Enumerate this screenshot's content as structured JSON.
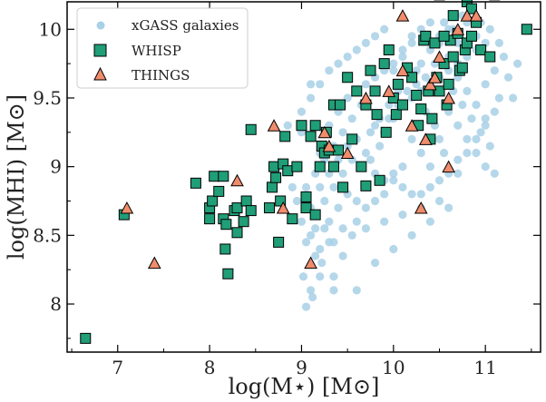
{
  "chart_data": {
    "type": "scatter",
    "xlabel": "log(M⋆) [M⊙]",
    "ylabel": "log(MHI) [M⊙]",
    "xlim": [
      6.45,
      11.6
    ],
    "ylim": [
      7.65,
      10.2
    ],
    "xticks": [
      7,
      8,
      9,
      10,
      11
    ],
    "yticks": [
      8,
      8.5,
      9,
      9.5,
      10
    ],
    "grid": false,
    "legend_position": "top-left",
    "series": [
      {
        "name": "xGASS galaxies",
        "marker": "circle",
        "color": "#a8d0e6",
        "points": [
          [
            9.05,
            7.98
          ],
          [
            9.12,
            8.05
          ],
          [
            9.22,
            8.3
          ],
          [
            9.3,
            8.45
          ],
          [
            9.15,
            8.55
          ],
          [
            9.35,
            8.2
          ],
          [
            9.45,
            8.35
          ],
          [
            9.55,
            8.5
          ],
          [
            9.6,
            8.1
          ],
          [
            9.7,
            8.55
          ],
          [
            9.8,
            8.3
          ],
          [
            9.9,
            8.6
          ],
          [
            10.0,
            8.4
          ],
          [
            10.1,
            8.65
          ],
          [
            10.2,
            8.5
          ],
          [
            10.3,
            8.8
          ],
          [
            10.4,
            8.6
          ],
          [
            10.5,
            8.9
          ],
          [
            10.6,
            8.7
          ],
          [
            10.7,
            8.95
          ],
          [
            9.1,
            8.7
          ],
          [
            9.2,
            8.85
          ],
          [
            9.3,
            8.95
          ],
          [
            9.4,
            9.05
          ],
          [
            9.5,
            9.15
          ],
          [
            9.6,
            9.2
          ],
          [
            9.7,
            9.1
          ],
          [
            9.8,
            9.3
          ],
          [
            9.9,
            9.25
          ],
          [
            10.0,
            9.35
          ],
          [
            10.1,
            9.45
          ],
          [
            10.2,
            9.5
          ],
          [
            10.3,
            9.55
          ],
          [
            10.4,
            9.6
          ],
          [
            10.5,
            9.65
          ],
          [
            10.6,
            9.7
          ],
          [
            10.7,
            9.75
          ],
          [
            10.8,
            9.8
          ],
          [
            10.9,
            9.85
          ],
          [
            11.0,
            9.9
          ],
          [
            9.0,
            9.4
          ],
          [
            9.1,
            9.5
          ],
          [
            9.2,
            9.6
          ],
          [
            9.3,
            9.7
          ],
          [
            9.4,
            9.75
          ],
          [
            9.5,
            9.8
          ],
          [
            9.6,
            9.85
          ],
          [
            9.7,
            9.9
          ],
          [
            9.8,
            9.95
          ],
          [
            9.9,
            10.0
          ],
          [
            10.0,
            9.7
          ],
          [
            10.1,
            9.8
          ],
          [
            10.2,
            9.9
          ],
          [
            10.3,
            9.75
          ],
          [
            10.4,
            9.85
          ],
          [
            10.5,
            9.95
          ],
          [
            10.6,
            10.0
          ],
          [
            10.7,
            9.9
          ],
          [
            10.8,
            10.05
          ],
          [
            10.9,
            9.95
          ],
          [
            11.0,
            9.6
          ],
          [
            11.1,
            9.7
          ],
          [
            11.2,
            9.8
          ],
          [
            11.3,
            9.5
          ],
          [
            11.1,
            9.4
          ],
          [
            11.0,
            9.3
          ],
          [
            10.9,
            9.2
          ],
          [
            10.8,
            9.1
          ],
          [
            10.7,
            9.3
          ],
          [
            10.6,
            9.4
          ],
          [
            10.5,
            9.2
          ],
          [
            10.4,
            9.0
          ],
          [
            10.3,
            9.1
          ],
          [
            10.2,
            9.2
          ],
          [
            10.1,
            9.0
          ],
          [
            10.0,
            8.9
          ],
          [
            9.9,
            8.8
          ],
          [
            9.8,
            8.95
          ],
          [
            9.7,
            8.85
          ],
          [
            9.6,
            8.75
          ],
          [
            9.5,
            8.8
          ],
          [
            9.4,
            8.7
          ],
          [
            9.3,
            8.6
          ],
          [
            9.2,
            8.4
          ],
          [
            9.1,
            8.5
          ],
          [
            9.0,
            8.6
          ],
          [
            8.95,
            8.75
          ],
          [
            8.9,
            8.85
          ],
          [
            8.85,
            9.3
          ],
          [
            9.0,
            9.25
          ],
          [
            9.1,
            9.6
          ],
          [
            9.2,
            9.1
          ],
          [
            9.3,
            9.3
          ],
          [
            9.4,
            9.4
          ],
          [
            9.5,
            9.5
          ],
          [
            9.6,
            9.55
          ],
          [
            9.7,
            9.6
          ],
          [
            9.8,
            9.65
          ],
          [
            9.9,
            9.7
          ],
          [
            10.0,
            9.75
          ],
          [
            10.1,
            9.85
          ],
          [
            10.2,
            9.95
          ],
          [
            10.3,
            10.0
          ],
          [
            10.4,
            10.05
          ],
          [
            10.5,
            9.9
          ],
          [
            10.6,
            9.8
          ],
          [
            10.7,
            9.65
          ],
          [
            10.8,
            9.55
          ],
          [
            10.9,
            9.45
          ],
          [
            11.0,
            9.35
          ],
          [
            10.55,
            9.1
          ],
          [
            10.45,
            9.3
          ],
          [
            10.35,
            9.4
          ],
          [
            10.25,
            9.6
          ],
          [
            10.15,
            9.7
          ],
          [
            10.05,
            9.55
          ],
          [
            9.95,
            9.45
          ],
          [
            9.85,
            9.35
          ],
          [
            9.75,
            9.25
          ],
          [
            9.65,
            9.0
          ],
          [
            9.55,
            9.05
          ],
          [
            9.45,
            8.95
          ],
          [
            9.35,
            8.85
          ],
          [
            9.25,
            8.75
          ],
          [
            9.15,
            8.65
          ],
          [
            9.05,
            8.45
          ],
          [
            9.02,
            8.2
          ],
          [
            9.1,
            8.1
          ],
          [
            9.2,
            8.2
          ],
          [
            9.35,
            8.1
          ],
          [
            10.65,
            9.55
          ],
          [
            10.75,
            9.45
          ],
          [
            10.85,
            9.35
          ],
          [
            10.95,
            9.25
          ],
          [
            11.05,
            9.15
          ],
          [
            11.15,
            9.5
          ],
          [
            11.25,
            9.65
          ],
          [
            11.35,
            9.75
          ],
          [
            11.15,
            9.9
          ],
          [
            11.05,
            10.0
          ],
          [
            10.95,
            10.05
          ],
          [
            10.85,
            9.95
          ],
          [
            10.75,
            10.1
          ],
          [
            10.65,
            10.0
          ],
          [
            10.55,
            10.05
          ],
          [
            10.45,
            9.75
          ],
          [
            10.35,
            9.65
          ],
          [
            10.25,
            9.7
          ],
          [
            10.15,
            9.55
          ],
          [
            10.05,
            9.45
          ],
          [
            9.95,
            9.35
          ],
          [
            9.85,
            9.15
          ],
          [
            9.75,
            9.05
          ],
          [
            9.65,
            9.45
          ],
          [
            9.55,
            9.35
          ],
          [
            9.45,
            9.25
          ],
          [
            9.35,
            9.15
          ],
          [
            9.25,
            9.05
          ],
          [
            9.15,
            8.95
          ],
          [
            9.05,
            8.85
          ],
          [
            10.2,
            8.8
          ],
          [
            10.3,
            8.7
          ],
          [
            10.4,
            8.85
          ],
          [
            10.5,
            8.75
          ],
          [
            10.6,
            8.95
          ],
          [
            10.7,
            9.05
          ],
          [
            10.8,
            9.2
          ],
          [
            10.9,
            9.1
          ],
          [
            11.0,
            9.0
          ],
          [
            11.1,
            8.95
          ],
          [
            9.6,
            8.6
          ],
          [
            9.7,
            8.7
          ],
          [
            9.8,
            8.75
          ],
          [
            9.9,
            8.9
          ],
          [
            10.0,
            8.95
          ],
          [
            10.1,
            8.85
          ],
          [
            9.45,
            8.55
          ],
          [
            9.35,
            8.45
          ],
          [
            9.25,
            8.55
          ],
          [
            9.15,
            8.35
          ]
        ]
      },
      {
        "name": "WHISP",
        "marker": "square",
        "color": "#1f9e77",
        "points": [
          [
            6.65,
            7.75
          ],
          [
            7.07,
            8.65
          ],
          [
            7.85,
            8.88
          ],
          [
            8.0,
            8.7
          ],
          [
            8.03,
            8.75
          ],
          [
            8.05,
            8.93
          ],
          [
            8.1,
            8.82
          ],
          [
            8.15,
            8.93
          ],
          [
            8.15,
            8.62
          ],
          [
            8.17,
            8.4
          ],
          [
            8.18,
            8.58
          ],
          [
            8.2,
            8.22
          ],
          [
            8.27,
            8.68
          ],
          [
            8.3,
            8.7
          ],
          [
            8.37,
            8.6
          ],
          [
            8.4,
            8.75
          ],
          [
            8.45,
            8.68
          ],
          [
            8.45,
            9.27
          ],
          [
            8.65,
            8.7
          ],
          [
            8.68,
            8.85
          ],
          [
            8.7,
            9.0
          ],
          [
            8.72,
            8.92
          ],
          [
            8.75,
            8.45
          ],
          [
            8.77,
            8.75
          ],
          [
            8.8,
            9.02
          ],
          [
            8.82,
            9.22
          ],
          [
            8.85,
            8.97
          ],
          [
            8.9,
            8.62
          ],
          [
            8.95,
            9.0
          ],
          [
            9.05,
            8.78
          ],
          [
            9.05,
            8.7
          ],
          [
            9.1,
            9.22
          ],
          [
            9.15,
            8.65
          ],
          [
            9.2,
            9.0
          ],
          [
            9.22,
            9.15
          ],
          [
            9.25,
            9.1
          ],
          [
            9.27,
            9.25
          ],
          [
            9.3,
            9.12
          ],
          [
            9.35,
            9.0
          ],
          [
            9.35,
            9.45
          ],
          [
            9.4,
            9.12
          ],
          [
            9.42,
            9.45
          ],
          [
            9.45,
            8.85
          ],
          [
            9.5,
            9.65
          ],
          [
            9.55,
            9.2
          ],
          [
            9.6,
            9.55
          ],
          [
            9.65,
            9.0
          ],
          [
            9.7,
            9.45
          ],
          [
            9.7,
            8.86
          ],
          [
            9.75,
            9.7
          ],
          [
            9.8,
            9.55
          ],
          [
            9.82,
            9.38
          ],
          [
            9.85,
            8.9
          ],
          [
            9.9,
            9.75
          ],
          [
            9.92,
            9.25
          ],
          [
            9.95,
            9.85
          ],
          [
            10.0,
            9.5
          ],
          [
            10.03,
            9.38
          ],
          [
            10.05,
            9.6
          ],
          [
            10.1,
            9.45
          ],
          [
            10.15,
            9.72
          ],
          [
            10.2,
            9.65
          ],
          [
            10.25,
            9.52
          ],
          [
            10.27,
            9.3
          ],
          [
            10.3,
            9.42
          ],
          [
            10.33,
            9.92
          ],
          [
            10.35,
            9.95
          ],
          [
            10.38,
            9.55
          ],
          [
            10.4,
            9.2
          ],
          [
            10.42,
            9.35
          ],
          [
            10.45,
            9.9
          ],
          [
            10.47,
            9.65
          ],
          [
            10.5,
            9.55
          ],
          [
            10.55,
            9.75
          ],
          [
            10.58,
            9.45
          ],
          [
            10.6,
            9.6
          ],
          [
            10.62,
            9.92
          ],
          [
            10.65,
            9.8
          ],
          [
            10.7,
            9.97
          ],
          [
            10.72,
            9.7
          ],
          [
            10.75,
            9.72
          ],
          [
            10.78,
            9.85
          ],
          [
            10.8,
            9.9
          ],
          [
            10.85,
            9.95
          ],
          [
            10.9,
            10.05
          ],
          [
            10.95,
            9.85
          ],
          [
            11.0,
            10.3
          ],
          [
            11.05,
            9.8
          ],
          [
            11.1,
            10.25
          ],
          [
            11.45,
            10.0
          ],
          [
            10.55,
            9.95
          ],
          [
            10.5,
            10.25
          ],
          [
            10.65,
            10.1
          ],
          [
            10.8,
            10.2
          ],
          [
            10.85,
            10.15
          ],
          [
            10.9,
            10.35
          ],
          [
            9.15,
            9.3
          ],
          [
            9.0,
            9.3
          ],
          [
            8.3,
            8.52
          ],
          [
            8.0,
            8.62
          ]
        ]
      },
      {
        "name": "THINGS",
        "marker": "triangle",
        "color": "#f08c6c",
        "points": [
          [
            7.1,
            8.7
          ],
          [
            7.4,
            8.3
          ],
          [
            8.3,
            8.9
          ],
          [
            8.7,
            9.3
          ],
          [
            8.8,
            8.7
          ],
          [
            9.1,
            8.3
          ],
          [
            9.25,
            9.25
          ],
          [
            9.3,
            9.15
          ],
          [
            9.5,
            9.1
          ],
          [
            9.7,
            9.5
          ],
          [
            10.1,
            10.1
          ],
          [
            10.1,
            9.7
          ],
          [
            10.3,
            8.7
          ],
          [
            10.35,
            9.2
          ],
          [
            10.5,
            9.8
          ],
          [
            10.6,
            9.0
          ],
          [
            10.7,
            10.0
          ],
          [
            10.8,
            10.1
          ],
          [
            10.9,
            10.1
          ],
          [
            10.6,
            9.5
          ],
          [
            10.2,
            9.3
          ],
          [
            10.4,
            9.6
          ],
          [
            9.95,
            9.55
          ],
          [
            10.45,
            9.65
          ]
        ]
      }
    ]
  }
}
